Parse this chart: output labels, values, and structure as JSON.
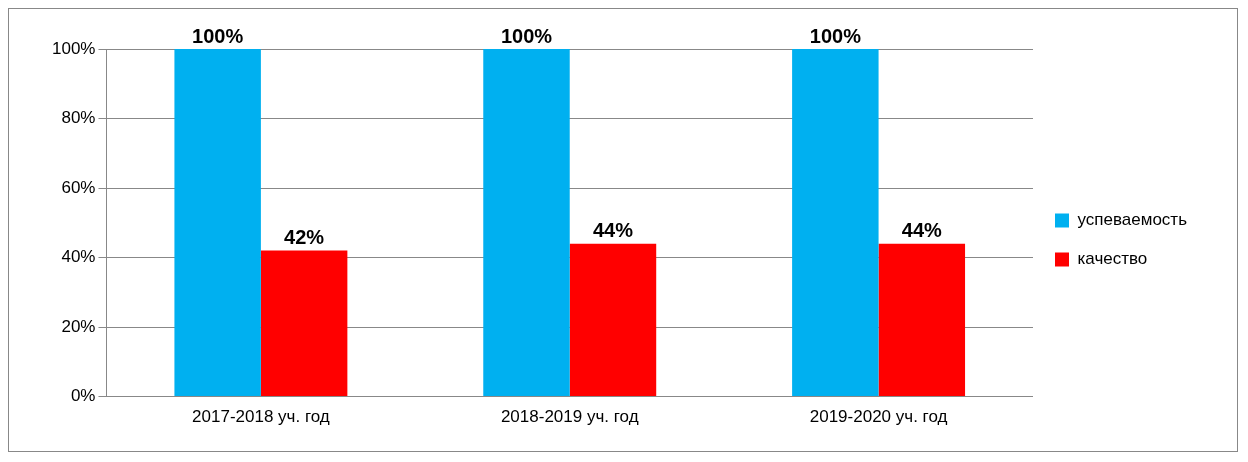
{
  "chart_data": {
    "type": "bar",
    "categories": [
      "2017-2018 уч. год",
      "2018-2019 уч. год",
      "2019-2020 уч. год"
    ],
    "series": [
      {
        "name": "успеваемость",
        "color": "#00b0f0",
        "values": [
          100,
          100,
          100
        ],
        "value_labels": [
          "100%",
          "100%",
          "100%"
        ]
      },
      {
        "name": "качество",
        "color": "#ff0000",
        "values": [
          42,
          44,
          44
        ],
        "value_labels": [
          "42%",
          "44%",
          "44%"
        ]
      }
    ],
    "ylim": [
      0,
      100
    ],
    "yticks": [
      {
        "value": 0,
        "label": "0%"
      },
      {
        "value": 20,
        "label": "20%"
      },
      {
        "value": 40,
        "label": "40%"
      },
      {
        "value": 60,
        "label": "60%"
      },
      {
        "value": 80,
        "label": "80%"
      },
      {
        "value": 100,
        "label": "100%"
      }
    ],
    "grid": "y",
    "legend": "right"
  }
}
